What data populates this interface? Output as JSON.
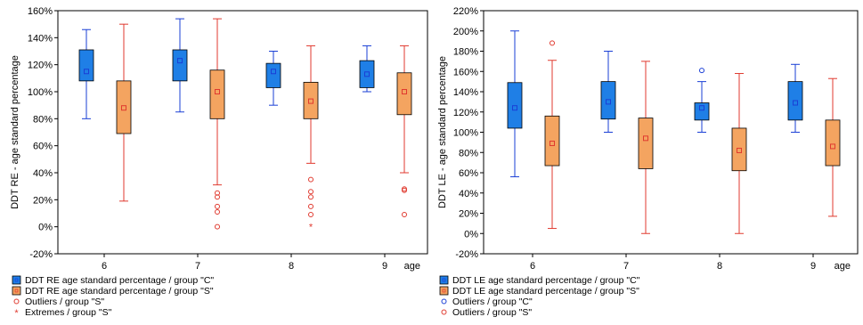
{
  "colors": {
    "groupC_fill": "#1f7fe6",
    "groupC_stroke": "#1a3fd6",
    "groupS_fill": "#f4a460",
    "groupS_stroke": "#e03a2f",
    "mean_marker": "#e03a2f"
  },
  "chart_data": [
    {
      "type": "box",
      "ylabel": "DDT RE - age standard percentage",
      "xlabel": "age",
      "categories": [
        "6",
        "7",
        "8",
        "9"
      ],
      "ylim": [
        -20,
        160
      ],
      "yticks": [
        -20,
        0,
        20,
        40,
        60,
        80,
        100,
        120,
        140,
        160
      ],
      "series": [
        {
          "key": "C",
          "boxes": [
            {
              "min": 80,
              "q1": 108,
              "median": 115,
              "q3": 131,
              "max": 146
            },
            {
              "min": 85,
              "q1": 108,
              "median": 123,
              "q3": 131,
              "max": 154
            },
            {
              "min": 90,
              "q1": 103,
              "median": 115,
              "q3": 121,
              "max": 130
            },
            {
              "min": 100,
              "q1": 103,
              "median": 113,
              "q3": 123,
              "max": 134
            }
          ]
        },
        {
          "key": "S",
          "boxes": [
            {
              "min": 19,
              "q1": 69,
              "median": 88,
              "q3": 108,
              "max": 150
            },
            {
              "min": 31,
              "q1": 80,
              "median": 100,
              "q3": 116,
              "max": 154
            },
            {
              "min": 47,
              "q1": 80,
              "median": 93,
              "q3": 107,
              "max": 134
            },
            {
              "min": 40,
              "q1": 83,
              "median": 100,
              "q3": 114,
              "max": 134
            }
          ],
          "outliers": [
            [],
            [
              25,
              22,
              15,
              11,
              0
            ],
            [
              35,
              26,
              22,
              15,
              9
            ],
            [
              28,
              27,
              9
            ]
          ],
          "extremes": [
            [],
            [],
            [
              0
            ],
            []
          ]
        }
      ],
      "legend": [
        {
          "kind": "box",
          "series": "C",
          "label": "DDT RE age standard percentage / group \"C\""
        },
        {
          "kind": "box",
          "series": "S",
          "label": "DDT RE age standard percentage / group \"S\""
        },
        {
          "kind": "outlier",
          "series": "S",
          "label": "Outliers / group \"S\""
        },
        {
          "kind": "extreme",
          "series": "S",
          "label": "Extremes / group \"S\""
        }
      ]
    },
    {
      "type": "box",
      "ylabel": "DDT LE - age standard percentage",
      "xlabel": "age",
      "categories": [
        "6",
        "7",
        "8",
        "9"
      ],
      "ylim": [
        -20,
        220
      ],
      "yticks": [
        -20,
        0,
        20,
        40,
        60,
        80,
        100,
        120,
        140,
        160,
        180,
        200,
        220
      ],
      "series": [
        {
          "key": "C",
          "boxes": [
            {
              "min": 56,
              "q1": 104,
              "median": 124,
              "q3": 149,
              "max": 200
            },
            {
              "min": 100,
              "q1": 113,
              "median": 130,
              "q3": 150,
              "max": 180
            },
            {
              "min": 100,
              "q1": 112,
              "median": 124,
              "q3": 129,
              "max": 150
            },
            {
              "min": 100,
              "q1": 112,
              "median": 129,
              "q3": 150,
              "max": 167
            }
          ],
          "outliers": [
            [],
            [],
            [
              161
            ],
            []
          ]
        },
        {
          "key": "S",
          "boxes": [
            {
              "min": 5,
              "q1": 67,
              "median": 89,
              "q3": 116,
              "max": 171
            },
            {
              "min": 0,
              "q1": 64,
              "median": 94,
              "q3": 114,
              "max": 170
            },
            {
              "min": 0,
              "q1": 62,
              "median": 82,
              "q3": 104,
              "max": 158
            },
            {
              "min": 17,
              "q1": 67,
              "median": 86,
              "q3": 112,
              "max": 153
            }
          ],
          "outliers": [
            [
              188
            ],
            [],
            [],
            []
          ]
        }
      ],
      "legend": [
        {
          "kind": "box",
          "series": "C",
          "label": "DDT LE age standard percentage / group \"C\""
        },
        {
          "kind": "box",
          "series": "S",
          "label": "DDT LE age standard percentage / group \"S\""
        },
        {
          "kind": "outlier",
          "series": "C",
          "label": "Outliers / group \"C\""
        },
        {
          "kind": "outlier",
          "series": "S",
          "label": "Outliers / group \"S\""
        }
      ]
    }
  ]
}
